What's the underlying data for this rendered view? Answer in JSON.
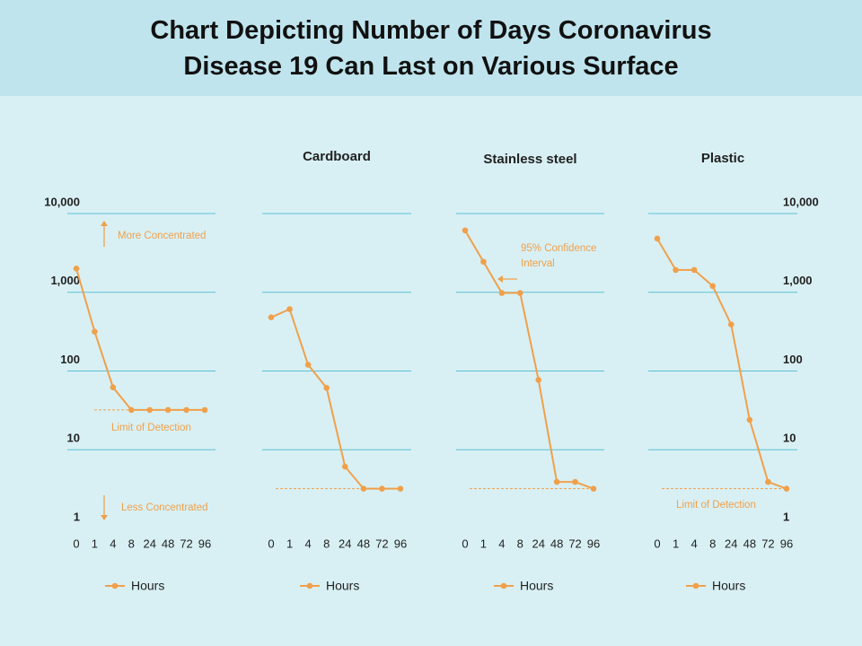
{
  "title": "Chart Depicting Number of Days Coronavirus Disease 19 Can Last on Various Surface",
  "chart_data": [
    {
      "type": "line",
      "title": null,
      "categories": [
        "0",
        "1",
        "4",
        "8",
        "24",
        "48",
        "72",
        "96"
      ],
      "series": [
        {
          "name": "Hours",
          "color": "#f0a04b",
          "values": [
            2000,
            316,
            62,
            32,
            32,
            32,
            32,
            32
          ]
        }
      ],
      "ylim": [
        1,
        10000
      ],
      "yticks": [
        1,
        10,
        100,
        {
          "value": 1000,
          "label": "1,000"
        },
        {
          "value": 10000,
          "label": "10,000"
        }
      ],
      "log_scale": true,
      "grid": true,
      "tick_labels": "left",
      "detection_limit": 32,
      "annotations": [
        "More Concentrated",
        "Limit of Detection",
        "Less Concentrated"
      ]
    },
    {
      "type": "line",
      "title": "Cardboard",
      "categories": [
        "0",
        "1",
        "4",
        "8",
        "24",
        "48",
        "72",
        "96"
      ],
      "series": [
        {
          "name": "Hours",
          "color": "#f0a04b",
          "values": [
            480,
            610,
            120,
            61,
            6.1,
            3.2,
            3.2,
            3.2
          ]
        }
      ],
      "ylim": [
        1,
        10000
      ],
      "yticks": [
        1,
        10,
        100,
        1000,
        10000
      ],
      "log_scale": true,
      "grid": true,
      "tick_labels": "none",
      "detection_limit": 3.2
    },
    {
      "type": "line",
      "title": "Stainless steel",
      "categories": [
        "0",
        "1",
        "4",
        "8",
        "24",
        "48",
        "72",
        "96"
      ],
      "series": [
        {
          "name": "Hours",
          "color": "#f0a04b",
          "values": [
            6100,
            2440,
            980,
            980,
            77,
            3.9,
            3.9,
            3.2
          ]
        }
      ],
      "ylim": [
        1,
        10000
      ],
      "yticks": [
        1,
        10,
        100,
        1000,
        10000
      ],
      "log_scale": true,
      "grid": true,
      "tick_labels": "none",
      "detection_limit": 3.2,
      "annotations": [
        "95% Confidence Interval"
      ]
    },
    {
      "type": "line",
      "title": "Plastic",
      "categories": [
        "0",
        "1",
        "4",
        "8",
        "24",
        "48",
        "72",
        "96"
      ],
      "series": [
        {
          "name": "Hours",
          "color": "#f0a04b",
          "values": [
            4800,
            1920,
            1920,
            1200,
            390,
            24,
            3.9,
            3.2
          ]
        }
      ],
      "ylim": [
        1,
        10000
      ],
      "yticks": [
        1,
        10,
        100,
        {
          "value": 1000,
          "label": "1,000"
        },
        {
          "value": 10000,
          "label": "10,000"
        }
      ],
      "log_scale": true,
      "grid": true,
      "tick_labels": "right",
      "detection_limit": 3.2,
      "annotations": [
        "Limit of Detection"
      ]
    }
  ]
}
